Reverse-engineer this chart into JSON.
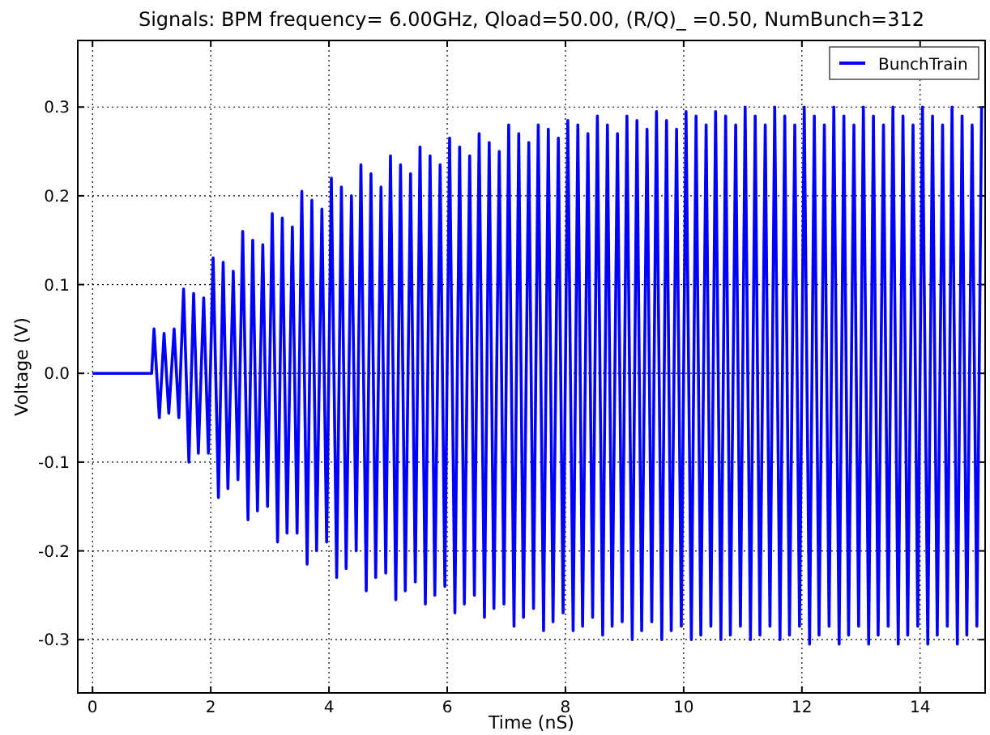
{
  "chart_data": {
    "type": "line",
    "title": "Signals: BPM frequency= 6.00GHz, Qload=50.00, (R/Q)_ =0.50, NumBunch=312",
    "xlabel": "Time (nS)",
    "ylabel": "Voltage (V)",
    "xlim": [
      -0.25,
      15.1
    ],
    "ylim": [
      -0.36,
      0.375
    ],
    "xticks": [
      0,
      2,
      4,
      6,
      8,
      10,
      12,
      14
    ],
    "yticks": [
      {
        "value": -0.3,
        "label": "-0.3"
      },
      {
        "value": -0.2,
        "label": "-0.2"
      },
      {
        "value": -0.1,
        "label": "-0.1"
      },
      {
        "value": 0,
        "label": "0.0"
      },
      {
        "value": 0.1,
        "label": "0.1"
      },
      {
        "value": 0.2,
        "label": "0.2"
      },
      {
        "value": 0.3,
        "label": "0.3"
      }
    ],
    "grid": true,
    "legend": "top right",
    "line_style": "solid",
    "series": [
      {
        "name": "BunchTrain",
        "color": "#0000ff",
        "x": [
          0,
          1.0,
          1.04,
          1.13,
          1.21,
          1.29,
          1.38,
          1.46,
          1.54,
          1.63,
          1.71,
          1.79,
          1.88,
          1.96,
          2.04,
          2.13,
          2.21,
          2.29,
          2.38,
          2.46,
          2.54,
          2.63,
          2.71,
          2.79,
          2.88,
          2.96,
          3.04,
          3.13,
          3.21,
          3.29,
          3.38,
          3.46,
          3.54,
          3.63,
          3.71,
          3.79,
          3.88,
          3.96,
          4.04,
          4.13,
          4.21,
          4.29,
          4.38,
          4.46,
          4.54,
          4.63,
          4.71,
          4.79,
          4.88,
          4.96,
          5.04,
          5.13,
          5.21,
          5.29,
          5.38,
          5.46,
          5.54,
          5.63,
          5.71,
          5.79,
          5.88,
          5.96,
          6.04,
          6.13,
          6.21,
          6.29,
          6.38,
          6.46,
          6.54,
          6.63,
          6.71,
          6.79,
          6.88,
          6.96,
          7.04,
          7.13,
          7.21,
          7.29,
          7.38,
          7.46,
          7.54,
          7.63,
          7.71,
          7.79,
          7.88,
          7.96,
          8.04,
          8.13,
          8.21,
          8.29,
          8.38,
          8.46,
          8.54,
          8.63,
          8.71,
          8.79,
          8.88,
          8.96,
          9.04,
          9.13,
          9.21,
          9.29,
          9.38,
          9.46,
          9.54,
          9.63,
          9.71,
          9.79,
          9.88,
          9.96,
          10.04,
          10.13,
          10.21,
          10.29,
          10.38,
          10.46,
          10.54,
          10.63,
          10.71,
          10.79,
          10.88,
          10.96,
          11.04,
          11.13,
          11.21,
          11.29,
          11.38,
          11.46,
          11.54,
          11.63,
          11.71,
          11.79,
          11.88,
          11.96,
          12.04,
          12.13,
          12.21,
          12.29,
          12.38,
          12.46,
          12.54,
          12.63,
          12.71,
          12.79,
          12.88,
          12.96,
          13.04,
          13.13,
          13.21,
          13.29,
          13.38,
          13.46,
          13.54,
          13.63,
          13.71,
          13.79,
          13.88,
          13.96,
          14.04,
          14.13,
          14.21,
          14.29,
          14.38,
          14.46,
          14.54,
          14.63,
          14.71,
          14.79,
          14.88,
          14.96,
          15.04
        ],
        "values": [
          0,
          0,
          0.05,
          -0.05,
          0.045,
          -0.045,
          0.05,
          -0.05,
          0.095,
          -0.1,
          0.09,
          -0.09,
          0.085,
          -0.09,
          0.13,
          -0.14,
          0.125,
          -0.13,
          0.115,
          -0.12,
          0.16,
          -0.165,
          0.15,
          -0.155,
          0.145,
          -0.15,
          0.18,
          -0.19,
          0.175,
          -0.18,
          0.165,
          -0.18,
          0.205,
          -0.215,
          0.195,
          -0.2,
          0.185,
          -0.19,
          0.22,
          -0.23,
          0.21,
          -0.22,
          0.2,
          -0.2,
          0.235,
          -0.245,
          0.225,
          -0.23,
          0.21,
          -0.225,
          0.245,
          -0.255,
          0.235,
          -0.245,
          0.225,
          -0.235,
          0.255,
          -0.26,
          0.245,
          -0.25,
          0.235,
          -0.24,
          0.265,
          -0.27,
          0.255,
          -0.26,
          0.245,
          -0.25,
          0.27,
          -0.275,
          0.26,
          -0.265,
          0.25,
          -0.26,
          0.28,
          -0.285,
          0.27,
          -0.275,
          0.26,
          -0.265,
          0.28,
          -0.29,
          0.275,
          -0.28,
          0.265,
          -0.27,
          0.285,
          -0.29,
          0.28,
          -0.285,
          0.27,
          -0.275,
          0.29,
          -0.295,
          0.28,
          -0.285,
          0.27,
          -0.28,
          0.29,
          -0.3,
          0.285,
          -0.29,
          0.275,
          -0.28,
          0.295,
          -0.3,
          0.285,
          -0.29,
          0.275,
          -0.285,
          0.295,
          -0.3,
          0.29,
          -0.295,
          0.28,
          -0.285,
          0.295,
          -0.3,
          0.29,
          -0.295,
          0.28,
          -0.285,
          0.3,
          -0.3,
          0.29,
          -0.295,
          0.28,
          -0.285,
          0.3,
          -0.3,
          0.29,
          -0.295,
          0.28,
          -0.285,
          0.3,
          -0.305,
          0.29,
          -0.295,
          0.28,
          -0.285,
          0.3,
          -0.305,
          0.29,
          -0.295,
          0.28,
          -0.285,
          0.3,
          -0.305,
          0.29,
          -0.295,
          0.28,
          -0.285,
          0.3,
          -0.305,
          0.29,
          -0.295,
          0.28,
          -0.285,
          0.3,
          -0.305,
          0.29,
          -0.295,
          0.28,
          -0.285,
          0.3,
          -0.305,
          0.29,
          -0.295,
          0.28,
          -0.285,
          0.3
        ]
      }
    ]
  }
}
